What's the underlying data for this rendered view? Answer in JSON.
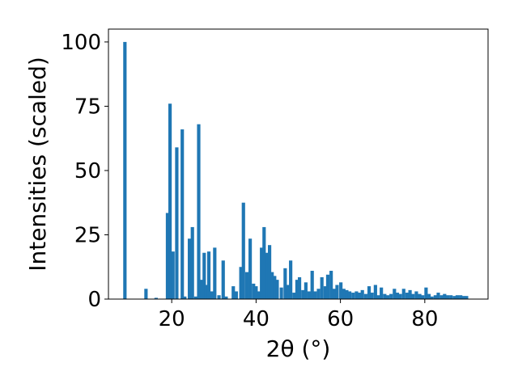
{
  "chart_data": {
    "type": "bar",
    "title": "",
    "xlabel": "2θ (°)",
    "ylabel": "Intensities (scaled)",
    "xlim": [
      5,
      95
    ],
    "ylim": [
      0,
      105
    ],
    "xticks": [
      20,
      40,
      60,
      80
    ],
    "yticks": [
      0,
      25,
      50,
      75,
      100
    ],
    "grid": false,
    "legend": "none",
    "bar_color": "#1f77b4",
    "bar_width": 0.8,
    "x": [
      8.9,
      13.9,
      16.3,
      19.0,
      19.6,
      20.3,
      21.2,
      22.5,
      23.1,
      24.2,
      24.9,
      25.7,
      26.4,
      27.1,
      27.7,
      28.2,
      28.8,
      29.5,
      30.2,
      31.2,
      32.2,
      32.9,
      34.6,
      35.3,
      36.4,
      37.0,
      37.8,
      38.6,
      39.4,
      40.0,
      40.6,
      41.3,
      41.9,
      42.5,
      43.2,
      43.8,
      44.4,
      45.0,
      46.0,
      46.9,
      47.5,
      48.2,
      49.0,
      49.7,
      50.3,
      51.1,
      51.8,
      52.6,
      53.3,
      54.0,
      54.8,
      55.6,
      56.4,
      57.0,
      57.8,
      58.5,
      59.2,
      60.1,
      60.8,
      61.5,
      62.2,
      63.0,
      63.8,
      64.5,
      65.2,
      66.0,
      66.8,
      67.5,
      68.3,
      69.0,
      69.7,
      70.5,
      71.2,
      72.0,
      72.8,
      73.5,
      74.2,
      75.0,
      75.8,
      76.5,
      77.2,
      78.0,
      78.8,
      79.5,
      80.3,
      81.0,
      81.7,
      82.5,
      83.2,
      84.0,
      84.7,
      85.4,
      86.2,
      87.0,
      87.7,
      88.5,
      89.2,
      89.9
    ],
    "values": [
      100,
      4,
      0.5,
      33.5,
      76,
      18.5,
      59,
      66,
      1,
      23.5,
      28,
      1,
      68,
      7.5,
      18,
      5.5,
      18.5,
      3,
      20,
      1.5,
      15,
      1,
      5,
      3,
      12.5,
      37.5,
      10.5,
      23.5,
      6,
      5,
      3,
      20,
      28,
      18,
      21,
      10.5,
      9,
      7.5,
      4.5,
      12,
      5.5,
      15,
      2.5,
      7.5,
      8.5,
      3.5,
      6.5,
      3,
      11,
      3,
      4,
      8.5,
      5,
      9.5,
      11,
      4,
      5.5,
      6.5,
      4,
      3.5,
      3,
      2.5,
      3,
      2.5,
      3.5,
      2,
      5,
      2.5,
      5.5,
      1.5,
      4.5,
      2,
      1.5,
      2,
      4,
      2.5,
      2,
      4,
      2.5,
      3.5,
      2,
      3,
      2,
      1.5,
      4.5,
      2,
      1,
      1.5,
      2.5,
      1.5,
      2,
      1.5,
      1.5,
      1.2,
      1.5,
      1.5,
      1.2,
      1.2
    ]
  }
}
